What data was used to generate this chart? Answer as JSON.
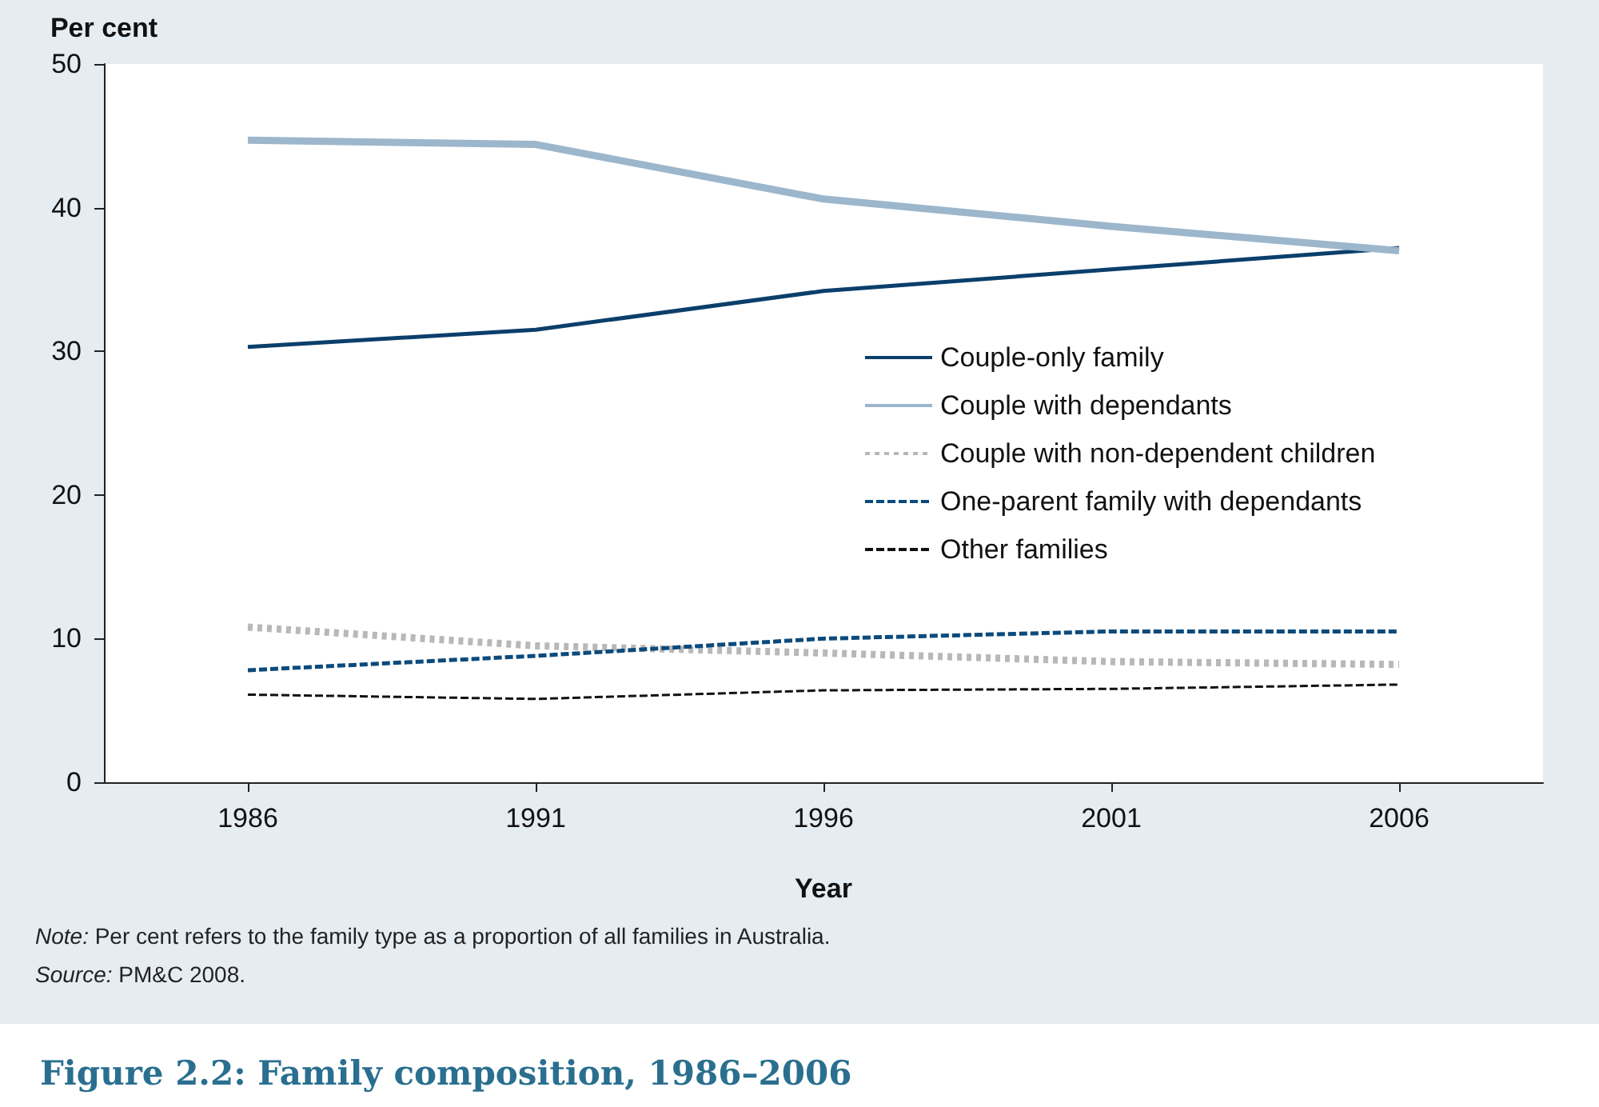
{
  "chart_data": {
    "type": "line",
    "title": "Figure 2.2: Family composition, 1986–2006",
    "xlabel": "Year",
    "ylabel": "Per cent",
    "annotations": [
      "Note: Per cent refers to the family type as a proportion of all families in Australia.",
      "Source: PM&C 2008."
    ],
    "categories": [
      "1986",
      "1991",
      "1996",
      "2001",
      "2006"
    ],
    "ylim": [
      0,
      50
    ],
    "yticks": [
      0,
      10,
      20,
      30,
      40,
      50
    ],
    "grid": false,
    "legend": "right",
    "marker": "none",
    "series": [
      {
        "name": "Couple-only family",
        "color": "#0b3f6b",
        "line_style": "solid",
        "values": [
          30.3,
          31.5,
          34.2,
          35.7,
          37.2
        ]
      },
      {
        "name": "Couple with dependants",
        "color": "#9cb6cc",
        "line_style": "solid",
        "values": [
          44.7,
          44.4,
          40.6,
          38.7,
          37.0
        ]
      },
      {
        "name": "Couple with non-dependent children",
        "color": "#b8b8b8",
        "line_style": "dotted",
        "values": [
          10.8,
          9.5,
          9.0,
          8.4,
          8.2
        ]
      },
      {
        "name": "One-parent family with dependants",
        "color": "#0b4a7c",
        "line_style": "dashed",
        "values": [
          7.8,
          8.8,
          10.0,
          10.5,
          10.5
        ]
      },
      {
        "name": "Other families",
        "color": "#111111",
        "line_style": "dashed",
        "values": [
          6.1,
          5.8,
          6.4,
          6.5,
          6.8
        ]
      }
    ]
  }
}
